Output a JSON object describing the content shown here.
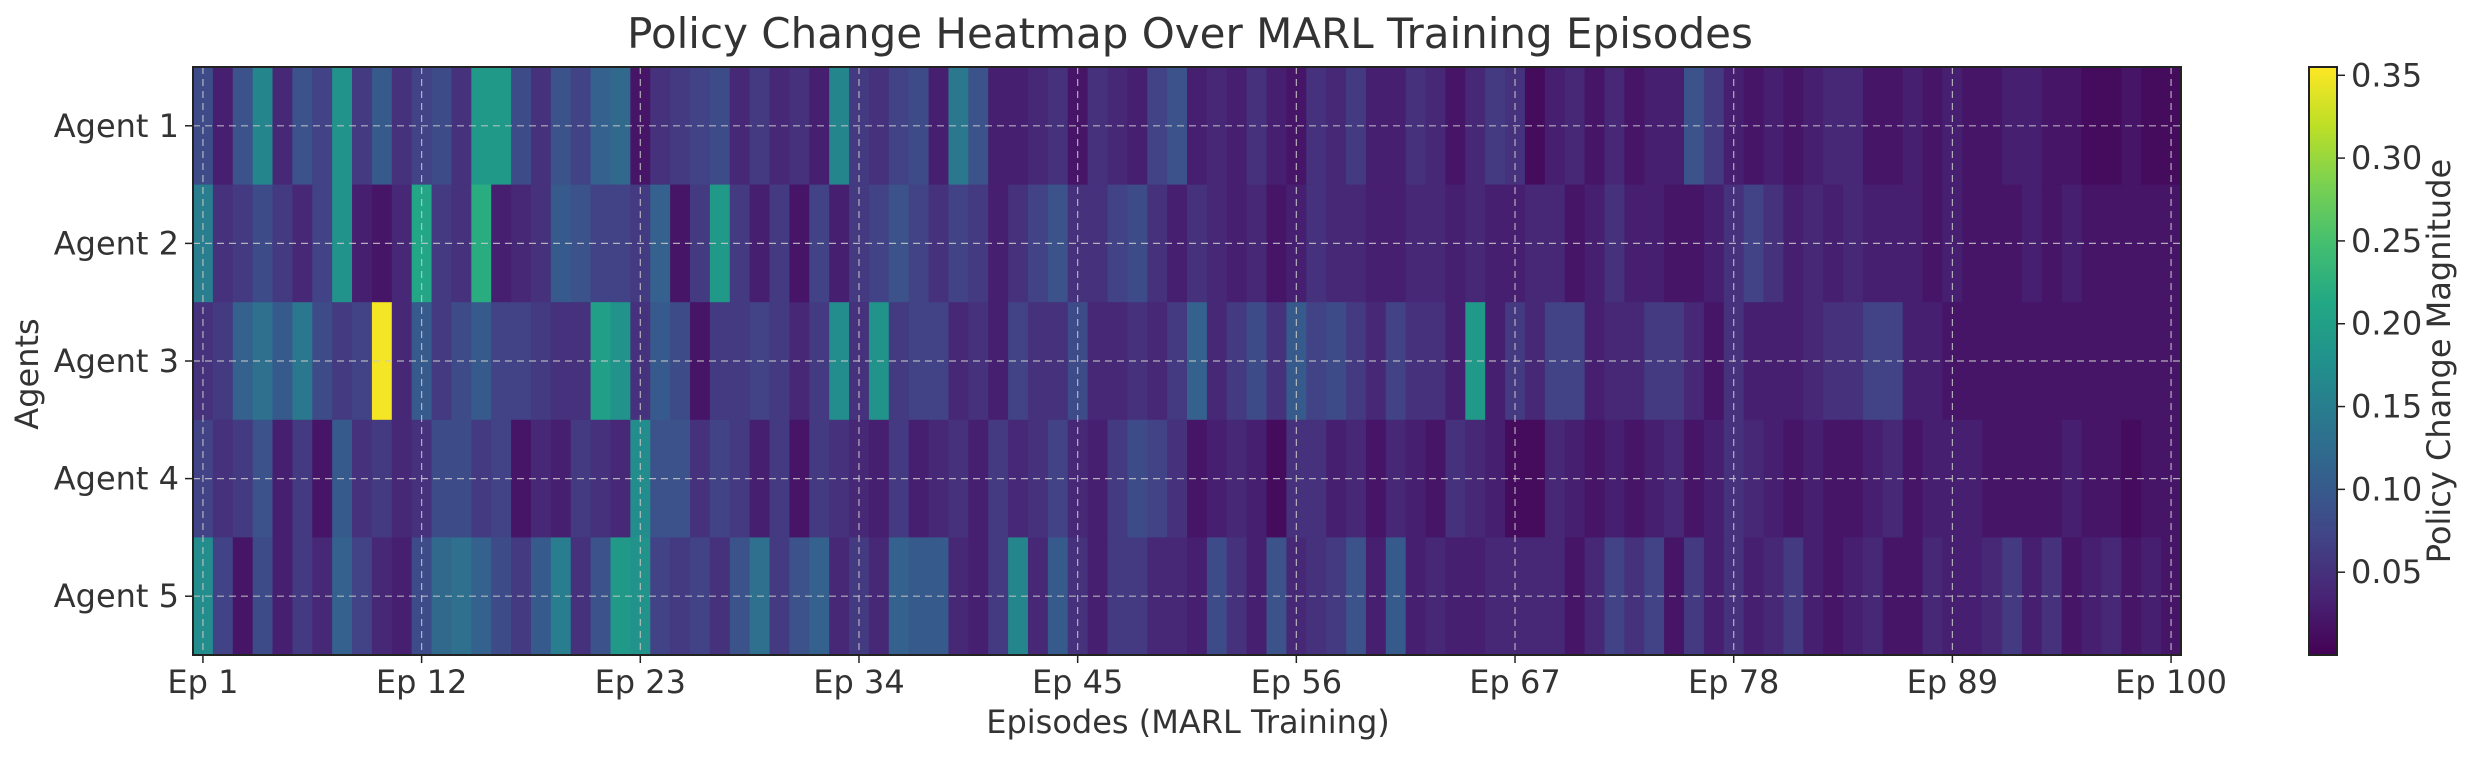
{
  "chart_data": {
    "type": "heatmap",
    "title": "Policy Change Heatmap Over MARL Training Episodes",
    "xlabel": "Episodes (MARL Training)",
    "ylabel": "Agents",
    "colorbar_label": "Policy Change Magnitude",
    "colormap": "viridis",
    "rows": [
      "Agent 1",
      "Agent 2",
      "Agent 3",
      "Agent 4",
      "Agent 5"
    ],
    "columns_count": 100,
    "xticks": [
      {
        "episode": 1,
        "label": "Ep 1"
      },
      {
        "episode": 12,
        "label": "Ep 12"
      },
      {
        "episode": 23,
        "label": "Ep 23"
      },
      {
        "episode": 34,
        "label": "Ep 34"
      },
      {
        "episode": 45,
        "label": "Ep 45"
      },
      {
        "episode": 56,
        "label": "Ep 56"
      },
      {
        "episode": 67,
        "label": "Ep 67"
      },
      {
        "episode": 78,
        "label": "Ep 78"
      },
      {
        "episode": 89,
        "label": "Ep 89"
      },
      {
        "episode": 100,
        "label": "Ep 100"
      }
    ],
    "colorbar_ticks": [
      {
        "value": 0.05,
        "label": "0.05"
      },
      {
        "value": 0.1,
        "label": "0.10"
      },
      {
        "value": 0.15,
        "label": "0.15"
      },
      {
        "value": 0.2,
        "label": "0.20"
      },
      {
        "value": 0.25,
        "label": "0.25"
      },
      {
        "value": 0.3,
        "label": "0.30"
      },
      {
        "value": 0.35,
        "label": "0.35"
      }
    ],
    "vmin": 0.0,
    "vmax": 0.355,
    "grid": true,
    "values": [
      [
        0.08,
        0.03,
        0.09,
        0.16,
        0.04,
        0.09,
        0.07,
        0.18,
        0.06,
        0.1,
        0.05,
        0.07,
        0.08,
        0.05,
        0.19,
        0.19,
        0.08,
        0.05,
        0.09,
        0.07,
        0.11,
        0.12,
        0.02,
        0.05,
        0.06,
        0.07,
        0.08,
        0.04,
        0.06,
        0.04,
        0.05,
        0.03,
        0.16,
        0.06,
        0.05,
        0.07,
        0.08,
        0.03,
        0.14,
        0.09,
        0.03,
        0.03,
        0.04,
        0.05,
        0.02,
        0.05,
        0.04,
        0.03,
        0.07,
        0.09,
        0.03,
        0.04,
        0.03,
        0.05,
        0.03,
        0.02,
        0.05,
        0.04,
        0.06,
        0.03,
        0.03,
        0.05,
        0.04,
        0.02,
        0.04,
        0.06,
        0.05,
        0.01,
        0.03,
        0.04,
        0.02,
        0.04,
        0.02,
        0.03,
        0.03,
        0.09,
        0.06,
        0.03,
        0.02,
        0.03,
        0.02,
        0.03,
        0.04,
        0.04,
        0.02,
        0.02,
        0.03,
        0.02,
        0.03,
        0.02,
        0.02,
        0.03,
        0.03,
        0.02,
        0.02,
        0.01,
        0.01,
        0.02,
        0.01,
        0.01
      ],
      [
        0.15,
        0.05,
        0.06,
        0.08,
        0.06,
        0.04,
        0.07,
        0.18,
        0.03,
        0.02,
        0.04,
        0.21,
        0.06,
        0.05,
        0.22,
        0.03,
        0.04,
        0.05,
        0.1,
        0.09,
        0.07,
        0.07,
        0.06,
        0.11,
        0.02,
        0.06,
        0.19,
        0.06,
        0.03,
        0.06,
        0.02,
        0.07,
        0.03,
        0.06,
        0.07,
        0.09,
        0.07,
        0.05,
        0.07,
        0.06,
        0.03,
        0.05,
        0.07,
        0.09,
        0.05,
        0.05,
        0.07,
        0.08,
        0.05,
        0.03,
        0.05,
        0.04,
        0.03,
        0.04,
        0.02,
        0.03,
        0.05,
        0.04,
        0.04,
        0.03,
        0.03,
        0.04,
        0.04,
        0.03,
        0.04,
        0.03,
        0.03,
        0.04,
        0.04,
        0.02,
        0.03,
        0.05,
        0.03,
        0.03,
        0.02,
        0.02,
        0.03,
        0.05,
        0.07,
        0.05,
        0.03,
        0.04,
        0.03,
        0.04,
        0.03,
        0.03,
        0.03,
        0.02,
        0.03,
        0.02,
        0.02,
        0.02,
        0.03,
        0.02,
        0.03,
        0.02,
        0.02,
        0.02,
        0.02,
        0.02
      ],
      [
        0.05,
        0.06,
        0.11,
        0.13,
        0.1,
        0.14,
        0.08,
        0.06,
        0.07,
        0.35,
        0.04,
        0.1,
        0.06,
        0.08,
        0.1,
        0.07,
        0.07,
        0.06,
        0.05,
        0.05,
        0.2,
        0.18,
        0.05,
        0.1,
        0.08,
        0.02,
        0.06,
        0.06,
        0.07,
        0.06,
        0.04,
        0.06,
        0.17,
        0.05,
        0.18,
        0.06,
        0.07,
        0.07,
        0.04,
        0.05,
        0.03,
        0.07,
        0.05,
        0.05,
        0.08,
        0.04,
        0.04,
        0.05,
        0.04,
        0.06,
        0.11,
        0.04,
        0.06,
        0.08,
        0.05,
        0.1,
        0.07,
        0.08,
        0.06,
        0.04,
        0.07,
        0.05,
        0.05,
        0.03,
        0.19,
        0.03,
        0.06,
        0.04,
        0.07,
        0.07,
        0.03,
        0.04,
        0.04,
        0.06,
        0.06,
        0.04,
        0.02,
        0.05,
        0.03,
        0.03,
        0.03,
        0.04,
        0.05,
        0.05,
        0.07,
        0.07,
        0.03,
        0.03,
        0.02,
        0.02,
        0.02,
        0.02,
        0.02,
        0.02,
        0.02,
        0.02,
        0.02,
        0.02,
        0.02,
        0.02
      ],
      [
        0.07,
        0.05,
        0.06,
        0.09,
        0.03,
        0.06,
        0.02,
        0.1,
        0.05,
        0.06,
        0.04,
        0.05,
        0.08,
        0.08,
        0.06,
        0.07,
        0.02,
        0.04,
        0.03,
        0.06,
        0.05,
        0.04,
        0.17,
        0.09,
        0.09,
        0.05,
        0.07,
        0.06,
        0.03,
        0.06,
        0.02,
        0.06,
        0.05,
        0.04,
        0.03,
        0.06,
        0.03,
        0.04,
        0.05,
        0.03,
        0.06,
        0.04,
        0.05,
        0.07,
        0.04,
        0.03,
        0.06,
        0.08,
        0.07,
        0.05,
        0.02,
        0.03,
        0.04,
        0.03,
        0.01,
        0.05,
        0.05,
        0.03,
        0.04,
        0.02,
        0.04,
        0.03,
        0.02,
        0.05,
        0.04,
        0.03,
        0.01,
        0.01,
        0.04,
        0.03,
        0.02,
        0.03,
        0.02,
        0.03,
        0.04,
        0.02,
        0.03,
        0.05,
        0.04,
        0.03,
        0.02,
        0.03,
        0.02,
        0.02,
        0.03,
        0.04,
        0.02,
        0.03,
        0.03,
        0.03,
        0.02,
        0.02,
        0.02,
        0.02,
        0.03,
        0.02,
        0.02,
        0.01,
        0.02,
        0.02
      ],
      [
        0.17,
        0.07,
        0.02,
        0.08,
        0.03,
        0.06,
        0.04,
        0.11,
        0.07,
        0.04,
        0.03,
        0.08,
        0.12,
        0.13,
        0.11,
        0.08,
        0.06,
        0.1,
        0.15,
        0.05,
        0.09,
        0.19,
        0.18,
        0.07,
        0.06,
        0.07,
        0.05,
        0.09,
        0.13,
        0.06,
        0.09,
        0.11,
        0.04,
        0.06,
        0.04,
        0.11,
        0.1,
        0.1,
        0.04,
        0.03,
        0.06,
        0.16,
        0.04,
        0.1,
        0.05,
        0.03,
        0.06,
        0.06,
        0.04,
        0.04,
        0.03,
        0.08,
        0.05,
        0.03,
        0.09,
        0.04,
        0.05,
        0.06,
        0.09,
        0.03,
        0.1,
        0.03,
        0.04,
        0.03,
        0.03,
        0.04,
        0.04,
        0.04,
        0.04,
        0.02,
        0.04,
        0.07,
        0.05,
        0.07,
        0.02,
        0.06,
        0.03,
        0.05,
        0.03,
        0.04,
        0.06,
        0.03,
        0.02,
        0.03,
        0.04,
        0.02,
        0.02,
        0.04,
        0.03,
        0.03,
        0.04,
        0.06,
        0.03,
        0.05,
        0.02,
        0.03,
        0.04,
        0.02,
        0.03,
        0.02
      ]
    ]
  }
}
